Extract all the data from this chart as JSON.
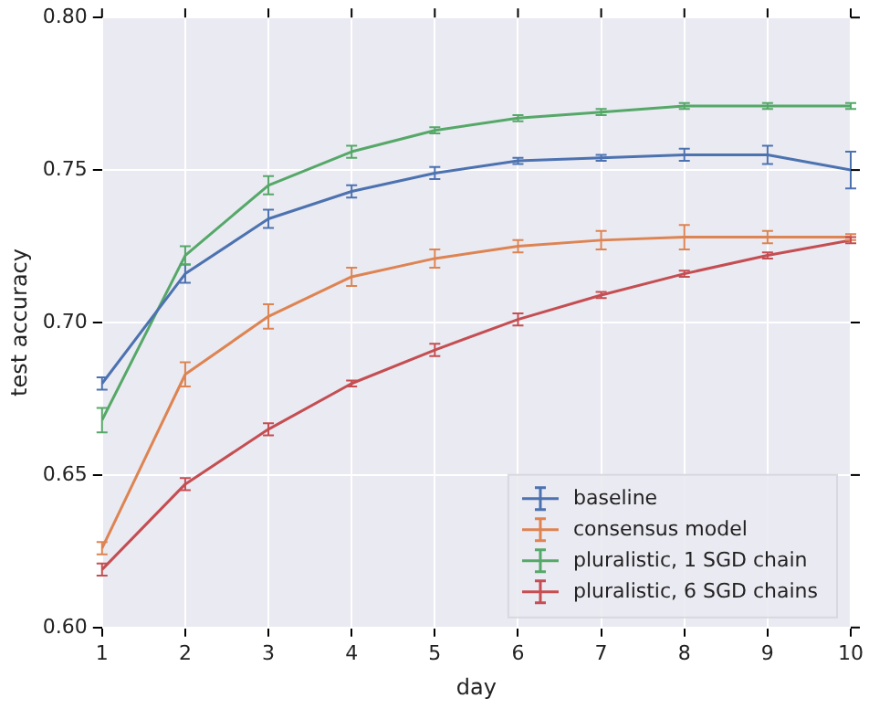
{
  "chart_data": {
    "type": "line",
    "xlabel": "day",
    "ylabel": "test accuracy",
    "x": [
      1,
      2,
      3,
      4,
      5,
      6,
      7,
      8,
      9,
      10
    ],
    "xlim": [
      1,
      10
    ],
    "xticks": [
      1,
      2,
      3,
      4,
      5,
      6,
      7,
      8,
      9,
      10
    ],
    "ylim": [
      0.6,
      0.8
    ],
    "yticks": [
      {
        "value": 0.6,
        "label": "0.60"
      },
      {
        "value": 0.65,
        "label": "0.65"
      },
      {
        "value": 0.7,
        "label": "0.70"
      },
      {
        "value": 0.75,
        "label": "0.75"
      },
      {
        "value": 0.8,
        "label": "0.80"
      }
    ],
    "grid": true,
    "legend": "bottom right",
    "line_style": "solid",
    "series": [
      {
        "name": "baseline",
        "color": "#4c72b0",
        "values": [
          0.68,
          0.716,
          0.734,
          0.743,
          0.749,
          0.753,
          0.754,
          0.755,
          0.755,
          0.75
        ],
        "errors": [
          0.002,
          0.003,
          0.003,
          0.002,
          0.002,
          0.001,
          0.001,
          0.002,
          0.003,
          0.006
        ]
      },
      {
        "name": "consensus model",
        "color": "#dd8452",
        "values": [
          0.626,
          0.683,
          0.702,
          0.715,
          0.721,
          0.725,
          0.727,
          0.728,
          0.728,
          0.728
        ],
        "errors": [
          0.002,
          0.004,
          0.004,
          0.003,
          0.003,
          0.002,
          0.003,
          0.004,
          0.002,
          0.001
        ]
      },
      {
        "name": "pluralistic, 1 SGD chain",
        "color": "#55a868",
        "values": [
          0.668,
          0.722,
          0.745,
          0.756,
          0.763,
          0.767,
          0.769,
          0.771,
          0.771,
          0.771
        ],
        "errors": [
          0.004,
          0.003,
          0.003,
          0.002,
          0.001,
          0.001,
          0.001,
          0.001,
          0.001,
          0.001
        ]
      },
      {
        "name": "pluralistic, 6 SGD chains",
        "color": "#c44e52",
        "values": [
          0.619,
          0.647,
          0.665,
          0.68,
          0.691,
          0.701,
          0.709,
          0.716,
          0.722,
          0.727
        ],
        "errors": [
          0.002,
          0.002,
          0.002,
          0.001,
          0.002,
          0.002,
          0.001,
          0.001,
          0.001,
          0.001
        ]
      }
    ]
  }
}
